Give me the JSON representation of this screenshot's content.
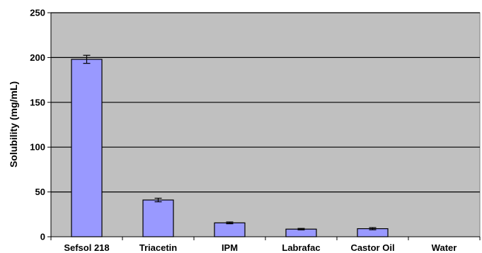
{
  "chart_data": {
    "type": "bar",
    "title": "",
    "xlabel": "",
    "ylabel": "Solubility (mg/mL)",
    "ylim": [
      0,
      250
    ],
    "yticks": [
      0,
      50,
      100,
      150,
      200,
      250
    ],
    "categories": [
      "Sefsol 218",
      "Triacetin",
      "IPM",
      "Labrafac",
      "Castor Oil",
      "Water"
    ],
    "values": [
      198,
      41,
      15.5,
      8.5,
      9,
      0
    ],
    "errors": [
      4.5,
      2,
      1,
      0.8,
      1.2,
      0
    ],
    "grid": true,
    "legend": "none",
    "colors": {
      "plot_background": "#c0c0c0",
      "bar_fill": "#9999ff",
      "bar_stroke": "#000000",
      "gridline": "#000000"
    }
  }
}
